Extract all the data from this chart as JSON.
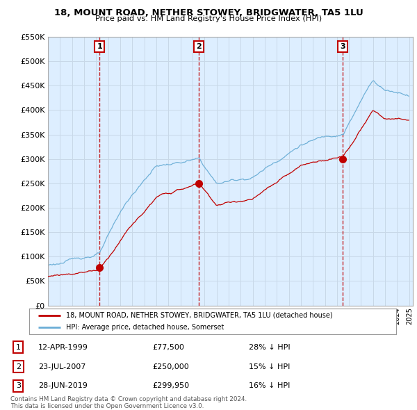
{
  "title": "18, MOUNT ROAD, NETHER STOWEY, BRIDGWATER, TA5 1LU",
  "subtitle": "Price paid vs. HM Land Registry's House Price Index (HPI)",
  "sale_labels_display": [
    "12-APR-1999",
    "23-JUL-2007",
    "28-JUN-2019"
  ],
  "sale_prices_display": [
    "£77,500",
    "£250,000",
    "£299,950"
  ],
  "sale_hpi_display": [
    "28% ↓ HPI",
    "15% ↓ HPI",
    "16% ↓ HPI"
  ],
  "sale_times": [
    1999.28,
    2007.55,
    2019.49
  ],
  "sale_prices": [
    77500,
    250000,
    299950
  ],
  "hpi_line_color": "#6baed6",
  "sale_line_color": "#c00000",
  "vline_color": "#c00000",
  "grid_color": "#c8d8e8",
  "bg_fill_color": "#ddeeff",
  "background_color": "#ffffff",
  "legend_label_sale": "18, MOUNT ROAD, NETHER STOWEY, BRIDGWATER, TA5 1LU (detached house)",
  "legend_label_hpi": "HPI: Average price, detached house, Somerset",
  "footer": "Contains HM Land Registry data © Crown copyright and database right 2024.\nThis data is licensed under the Open Government Licence v3.0.",
  "ylim": [
    0,
    550000
  ],
  "yticks": [
    0,
    50000,
    100000,
    150000,
    200000,
    250000,
    300000,
    350000,
    400000,
    450000,
    500000,
    550000
  ],
  "xstart_year": 1995,
  "xend_year": 2025
}
